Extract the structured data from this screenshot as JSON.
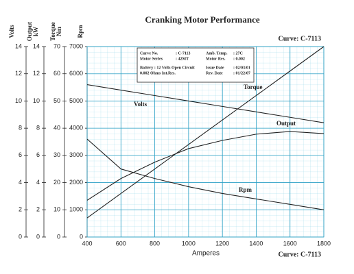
{
  "chart_data": {
    "type": "line",
    "title": "Cranking Motor Performance",
    "curve_label": "Curve: C-7113",
    "x_label": "Amperes",
    "x": [
      400,
      600,
      800,
      1000,
      1200,
      1400,
      1600,
      1800
    ],
    "xlim": [
      400,
      1800
    ],
    "xticks": [
      400,
      600,
      800,
      1000,
      1200,
      1400,
      1600,
      1800
    ],
    "grid": true,
    "axes": [
      {
        "label": "Volts",
        "ylim": [
          0,
          14
        ],
        "yticks": [
          0,
          2,
          4,
          6,
          8,
          10,
          12,
          14
        ]
      },
      {
        "label": "Output kW",
        "ylim": [
          0,
          14
        ],
        "yticks": [
          0,
          2,
          4,
          6,
          8,
          10,
          12,
          14
        ]
      },
      {
        "label": "Torque Nm",
        "ylim": [
          0,
          70
        ],
        "yticks": [
          0,
          10,
          20,
          30,
          40,
          50,
          60,
          70
        ]
      },
      {
        "label": "Rpm",
        "ylim": [
          0,
          7000
        ],
        "yticks": [
          0,
          1000,
          2000,
          3000,
          4000,
          5000,
          6000,
          7000
        ]
      }
    ],
    "series": [
      {
        "name": "Volts",
        "axis": 0,
        "color": "#222222",
        "values": [
          11.2,
          10.8,
          10.4,
          10.0,
          9.6,
          9.2,
          8.8,
          8.4
        ]
      },
      {
        "name": "Torque",
        "axis": 2,
        "color": "#222222",
        "values": [
          7,
          16,
          25,
          34,
          43,
          52,
          61,
          70
        ]
      },
      {
        "name": "Output",
        "axis": 1,
        "color": "#222222",
        "values": [
          2.7,
          4.3,
          5.5,
          6.5,
          7.1,
          7.56,
          7.76,
          7.6
        ]
      },
      {
        "name": "Rpm",
        "axis": 3,
        "color": "#222222",
        "values": [
          3600,
          2500,
          2150,
          1850,
          1600,
          1400,
          1200,
          1000
        ]
      }
    ],
    "info": {
      "rows": [
        [
          {
            "label": "Curve No.",
            "value": ": C-7113"
          },
          {
            "label": "Amb. Temp.",
            "value": ": 27C"
          }
        ],
        [
          {
            "label": "Motor Series",
            "value": ": 42MT"
          },
          {
            "label": "Motor Res.",
            "value": ": 0.002"
          }
        ],
        [
          {
            "label": "Battery : 12 Volts Open Circuit",
            "value": ""
          },
          {
            "label": "Issue Date",
            "value": ": 02/03/01"
          }
        ],
        [
          {
            "label": "0.002 Ohms Int.Res.",
            "value": ""
          },
          {
            "label": "Rev. Date",
            "value": ": 01/22/07"
          }
        ]
      ]
    }
  }
}
